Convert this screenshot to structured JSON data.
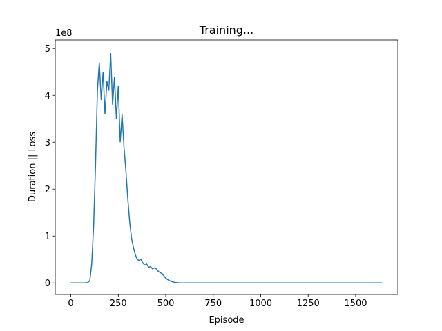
{
  "chart_data": {
    "type": "line",
    "title": "Training...",
    "x_label": "Episode",
    "y_label": "Duration || Loss",
    "y_offset_label": "1e8",
    "xlim": [
      -82,
      1722
    ],
    "xticks": [
      0,
      250,
      500,
      750,
      1000,
      1250,
      1500
    ],
    "ylim": [
      -0.2465,
      5.18
    ],
    "yticks": [
      0,
      1,
      2,
      3,
      4,
      5
    ],
    "series": [
      {
        "color": "#1f77b4",
        "x": [
          0,
          10,
          20,
          30,
          40,
          50,
          60,
          70,
          80,
          90,
          100,
          110,
          120,
          130,
          140,
          150,
          160,
          170,
          180,
          190,
          200,
          210,
          220,
          230,
          240,
          250,
          260,
          270,
          280,
          290,
          300,
          310,
          320,
          330,
          340,
          350,
          360,
          370,
          380,
          390,
          400,
          410,
          420,
          430,
          440,
          450,
          460,
          470,
          480,
          490,
          500,
          510,
          520,
          530,
          540,
          550,
          560,
          570,
          580,
          590,
          600,
          650,
          700,
          750,
          800,
          850,
          900,
          950,
          1000,
          1050,
          1100,
          1150,
          1200,
          1250,
          1300,
          1350,
          1400,
          1450,
          1500,
          1550,
          1600,
          1640
        ],
        "values": [
          0,
          0,
          0,
          0,
          0,
          0,
          0,
          0,
          0,
          0.01,
          0.05,
          0.4,
          1.2,
          2.5,
          4.1,
          4.7,
          3.9,
          4.5,
          3.6,
          4.3,
          4.1,
          4.9,
          3.8,
          4.4,
          3.5,
          4.2,
          3.0,
          3.6,
          2.9,
          2.4,
          1.8,
          1.3,
          0.95,
          0.75,
          0.6,
          0.5,
          0.48,
          0.5,
          0.42,
          0.38,
          0.4,
          0.33,
          0.35,
          0.3,
          0.32,
          0.3,
          0.25,
          0.22,
          0.2,
          0.15,
          0.1,
          0.07,
          0.05,
          0.03,
          0.02,
          0.01,
          0.005,
          0,
          0,
          0,
          0,
          0,
          0,
          0,
          0,
          0,
          0,
          0,
          0,
          0,
          0,
          0,
          0,
          0,
          0,
          0,
          0,
          0,
          0,
          0,
          0,
          0
        ]
      }
    ]
  }
}
